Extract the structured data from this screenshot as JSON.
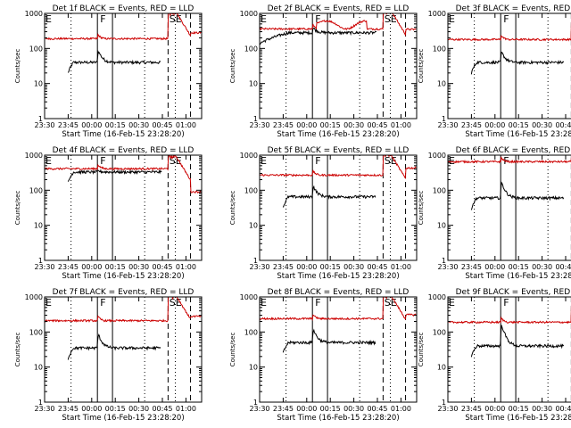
{
  "chart_data": {
    "type": "line",
    "series_labels": {
      "events": "BLACK = Events",
      "lld": "RED = LLD"
    },
    "shared_axes": {
      "xlabel": "Start Time (16-Feb-15 23:28:20)",
      "ylabel": "Counts/sec",
      "x_unit": "minutes since 23:28:20",
      "xlim": [
        1.67,
        101.67
      ],
      "x_ticks": [
        1.67,
        16.67,
        31.67,
        46.67,
        61.67,
        76.67,
        91.67
      ],
      "x_tick_labels": [
        "23:30",
        "23:45",
        "00:00",
        "00:15",
        "00:30",
        "00:45",
        "01:00"
      ],
      "ylim": [
        1,
        1000
      ],
      "y_scale": "log",
      "y_ticks": [
        1,
        10,
        100,
        1000
      ],
      "y_tick_labels": [
        "1",
        "10",
        "100",
        "1000"
      ]
    },
    "markers": {
      "dotted": [
        18.5,
        65.4,
        84.9
      ],
      "solid": [
        35.3,
        44.9
      ],
      "dashed": [
        80.3,
        94.6
      ],
      "labels": [
        {
          "text": "E",
          "x": 1.67
        },
        {
          "text": "F",
          "x": 36.5
        },
        {
          "text": "SE",
          "x": 80.5
        }
      ]
    },
    "panels": [
      {
        "title": "Det 1f BLACK = Events, RED = LLD",
        "events": {
          "start": 16.6,
          "end": 75.7,
          "base": 40,
          "peak": 100,
          "red_gap": 1.0
        },
        "lld": {
          "base": 190,
          "spike": 1300,
          "tail": 280
        }
      },
      {
        "title": "Det 2f BLACK = Events, RED = LLD",
        "events": {
          "start": 1.67,
          "end": 76.4,
          "base": 280,
          "peak": 420,
          "red_gap": 1.05
        },
        "lld": {
          "base": 360,
          "spike": 1400,
          "tail": 350,
          "hump": 600
        }
      },
      {
        "title": "Det 3f BLACK = Events, RED = LLD",
        "events": {
          "start": 16.6,
          "end": 75.7,
          "base": 40,
          "peak": 90,
          "red_gap": 1.0
        },
        "lld": {
          "base": 180,
          "spike": 1200,
          "tail": 260
        }
      },
      {
        "title": "Det 4f BLACK = Events, RED = LLD",
        "events": {
          "start": 16.6,
          "end": 76.4,
          "base": 330,
          "peak": 360,
          "red_gap": 1.25
        },
        "lld": {
          "base": 410,
          "spike": 1100,
          "tail": 90
        }
      },
      {
        "title": "Det 5f BLACK = Events, RED = LLD",
        "events": {
          "start": 16.6,
          "end": 75.7,
          "base": 65,
          "peak": 150,
          "red_gap": 1.0
        },
        "lld": {
          "base": 270,
          "spike": 1200,
          "tail": 430
        }
      },
      {
        "title": "Det 6f BLACK = Events, RED = LLD",
        "events": {
          "start": 16.6,
          "end": 75.7,
          "base": 60,
          "peak": 200,
          "red_gap": 1.0
        },
        "lld": {
          "base": 650,
          "spike": 1300,
          "tail": 430
        }
      },
      {
        "title": "Det 7f BLACK = Events, RED = LLD",
        "events": {
          "start": 16.6,
          "end": 75.7,
          "base": 35,
          "peak": 100,
          "red_gap": 1.0
        },
        "lld": {
          "base": 210,
          "spike": 1300,
          "tail": 280
        }
      },
      {
        "title": "Det 8f BLACK = Events, RED = LLD",
        "events": {
          "start": 16.6,
          "end": 75.7,
          "base": 50,
          "peak": 140,
          "red_gap": 1.0
        },
        "lld": {
          "base": 240,
          "spike": 1300,
          "tail": 310
        }
      },
      {
        "title": "Det 9f BLACK = Events, RED = LLD",
        "events": {
          "start": 16.6,
          "end": 75.7,
          "base": 40,
          "peak": 200,
          "red_gap": 1.0
        },
        "lld": {
          "base": 190,
          "spike": 1300,
          "tail": 250
        }
      }
    ]
  },
  "colors": {
    "events": "#000000",
    "lld": "#cc0000",
    "axes": "#000000",
    "background": "#ffffff"
  }
}
